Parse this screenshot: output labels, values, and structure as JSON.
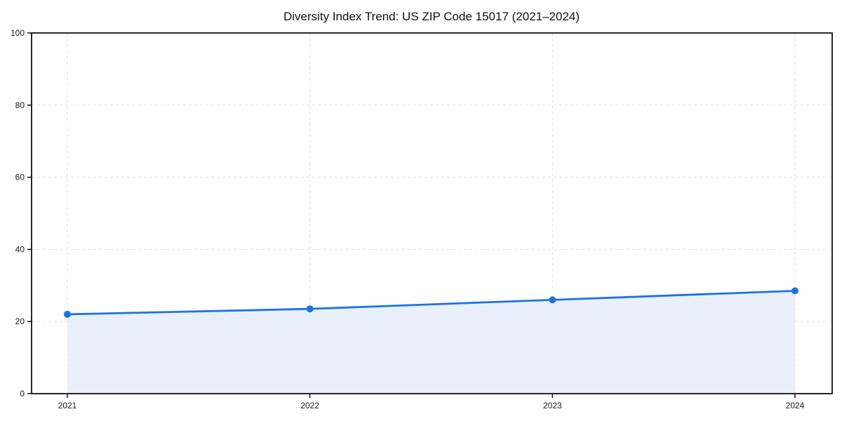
{
  "chart_data": {
    "type": "line",
    "title": "Diversity Index Trend: US ZIP Code 15017 (2021–2024)",
    "xlabel": "",
    "ylabel": "",
    "x": [
      2021,
      2022,
      2023,
      2024
    ],
    "x_tick_labels": [
      "2021",
      "2022",
      "2023",
      "2024"
    ],
    "series": [
      {
        "name": "Diversity Index",
        "values": [
          22,
          23.5,
          26,
          28.5
        ]
      }
    ],
    "ylim": [
      0,
      100
    ],
    "y_ticks": [
      0,
      20,
      40,
      60,
      80,
      100
    ],
    "y_tick_labels": [
      "0",
      "20",
      "40",
      "60",
      "80",
      "100"
    ],
    "grid": true,
    "grid_style": "dashed",
    "legend_position": "none",
    "area_fill": true,
    "marker": "circle",
    "colors": {
      "line": "#1a73e8",
      "marker": "#1a73e8",
      "fill": "#e9f0fc",
      "grid": "#e3e3e3",
      "spine": "#111111",
      "text": "#1a1a1a",
      "background": "#ffffff"
    }
  }
}
